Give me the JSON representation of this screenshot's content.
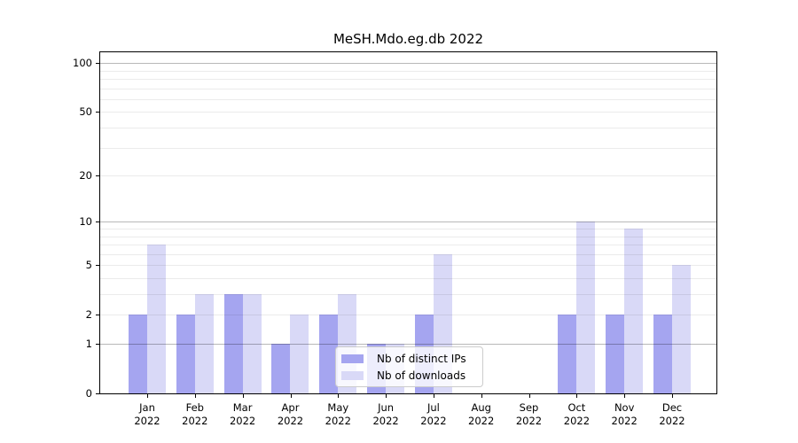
{
  "chart_data": {
    "type": "bar",
    "title": "MeSH.Mdo.eg.db 2022",
    "categories": [
      "Jan 2022",
      "Feb 2022",
      "Mar 2022",
      "Apr 2022",
      "May 2022",
      "Jun 2022",
      "Jul 2022",
      "Aug 2022",
      "Sep 2022",
      "Oct 2022",
      "Nov 2022",
      "Dec 2022"
    ],
    "x_tick_months": [
      "Jan",
      "Feb",
      "Mar",
      "Apr",
      "May",
      "Jun",
      "Jul",
      "Aug",
      "Sep",
      "Oct",
      "Nov",
      "Dec"
    ],
    "x_tick_year": "2022",
    "series": [
      {
        "name": "Nb of distinct IPs",
        "color": "#a5a5f0",
        "values": [
          2,
          2,
          3,
          1,
          2,
          1,
          2,
          0,
          0,
          2,
          2,
          2
        ]
      },
      {
        "name": "Nb of downloads",
        "color": "#d9d9f7",
        "values": [
          7,
          3,
          3,
          2,
          3,
          1,
          6,
          0,
          0,
          10,
          9,
          5
        ]
      }
    ],
    "y_axis": {
      "scale": "log10(1+value)",
      "tick_values": [
        0,
        1,
        2,
        5,
        10,
        20,
        50,
        100
      ],
      "major_gridline_values": [
        1,
        10,
        100
      ],
      "minor_gridline_values": [
        2,
        3,
        4,
        5,
        6,
        7,
        8,
        9,
        20,
        30,
        40,
        50,
        60,
        70,
        80,
        90
      ],
      "ylim": [
        0,
        116
      ]
    },
    "xlabel": "",
    "ylabel": "",
    "grid": true,
    "grid_above_bars": true,
    "legend_position": "lower center",
    "legend_entries": [
      "Nb of distinct IPs",
      "Nb of downloads"
    ]
  },
  "colors": {
    "background": "#ffffff",
    "bar_distinct_ips": "#a5a5f0",
    "bar_downloads": "#d9d9f7",
    "axis": "#000000",
    "legend_border": "#cccccc"
  }
}
